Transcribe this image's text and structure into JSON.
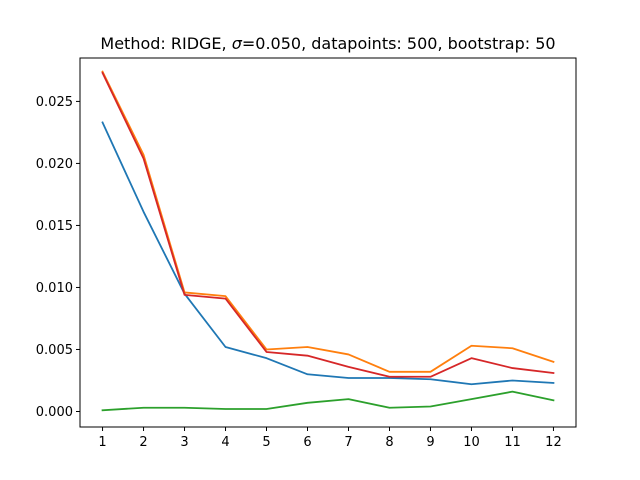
{
  "chart_data": {
    "type": "line",
    "title_parts": [
      "Method: RIDGE, ",
      "σ",
      "=0.050, datapoints: 500, bootstrap: 50"
    ],
    "xlabel": "",
    "ylabel": "",
    "x": [
      1,
      2,
      3,
      4,
      5,
      6,
      7,
      8,
      9,
      10,
      11,
      12
    ],
    "xlim": [
      0.45,
      12.55
    ],
    "ylim": [
      -0.00125,
      0.0285
    ],
    "y_ticks": [
      0.0,
      0.005,
      0.01,
      0.015,
      0.02,
      0.025
    ],
    "y_tick_labels": [
      "0.000",
      "0.005",
      "0.010",
      "0.015",
      "0.020",
      "0.025"
    ],
    "x_tick_labels": [
      "1",
      "2",
      "3",
      "4",
      "5",
      "6",
      "7",
      "8",
      "9",
      "10",
      "11",
      "12"
    ],
    "grid": false,
    "legend": "none",
    "series": [
      {
        "color": "#1f77b4",
        "values": [
          0.0233,
          0.0161,
          0.0095,
          0.0052,
          0.0043,
          0.003,
          0.0027,
          0.0027,
          0.0026,
          0.0022,
          0.0025,
          0.0023
        ]
      },
      {
        "color": "#ff7f0e",
        "values": [
          0.0274,
          0.0207,
          0.0096,
          0.0093,
          0.005,
          0.0052,
          0.0046,
          0.0032,
          0.0032,
          0.0053,
          0.0051,
          0.004
        ]
      },
      {
        "color": "#2ca02c",
        "values": [
          0.0001,
          0.0003,
          0.0003,
          0.0002,
          0.0002,
          0.0007,
          0.001,
          0.0003,
          0.0004,
          0.001,
          0.0016,
          0.0009
        ]
      },
      {
        "color": "#d62728",
        "values": [
          0.0273,
          0.0204,
          0.0094,
          0.0091,
          0.0048,
          0.0045,
          0.0036,
          0.0028,
          0.0028,
          0.0043,
          0.0035,
          0.0031
        ]
      }
    ]
  }
}
